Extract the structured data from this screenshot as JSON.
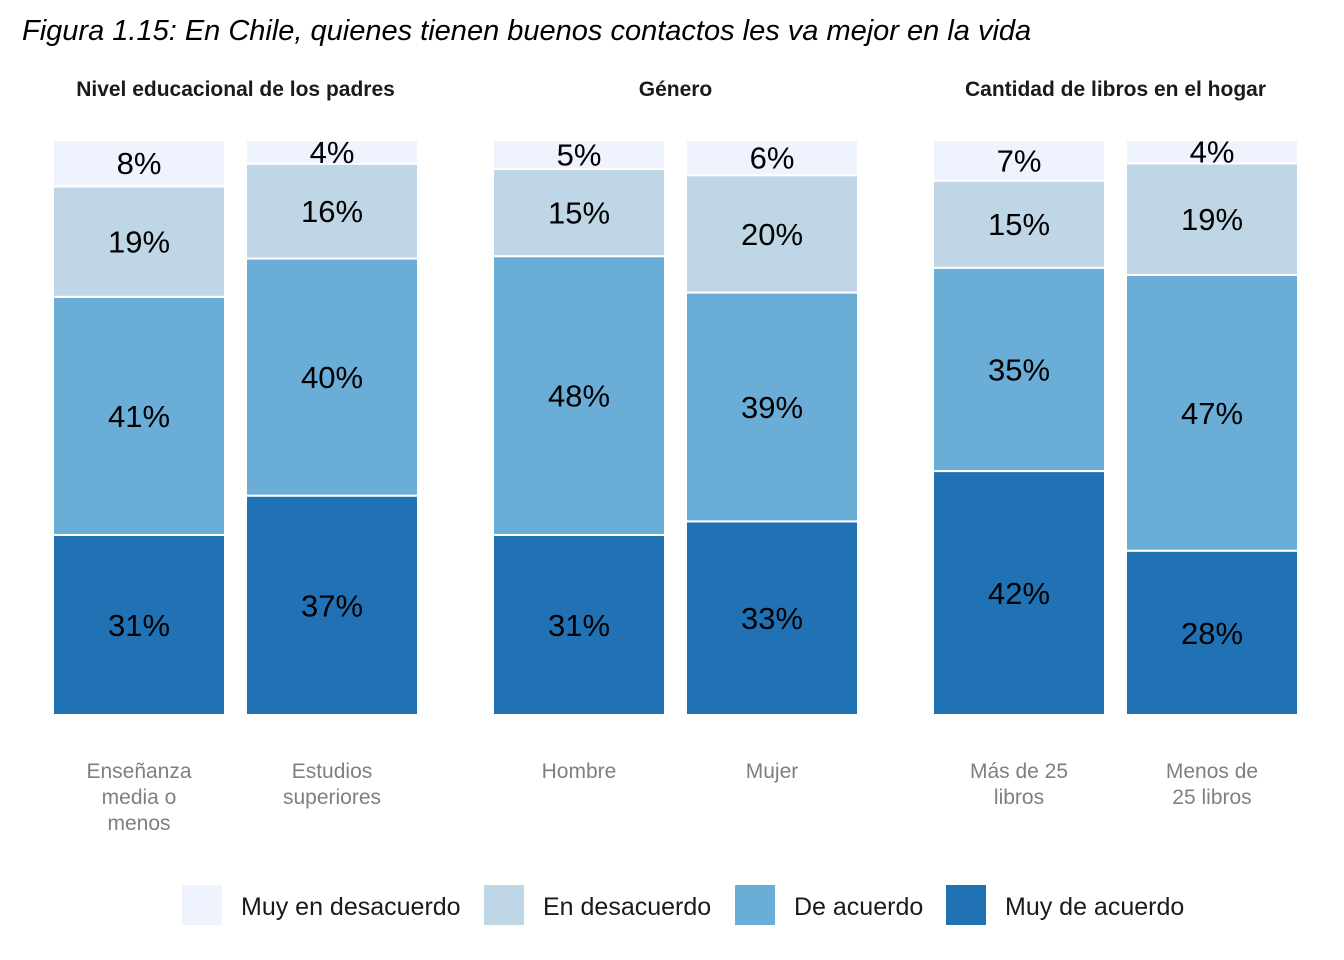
{
  "title": "Figura 1.15: En Chile, quienes tienen buenos contactos les va mejor en la vida",
  "legend": [
    {
      "label": "Muy en desacuerdo",
      "color": "#eef3fd"
    },
    {
      "label": "En desacuerdo",
      "color": "#bfd6e6"
    },
    {
      "label": "De acuerdo",
      "color": "#6aadd6"
    },
    {
      "label": "Muy de acuerdo",
      "color": "#2171b5"
    }
  ],
  "chart_data": {
    "type": "bar",
    "stacked": true,
    "legend_position": "bottom",
    "ylim": [
      0,
      100
    ],
    "segment_order_bottom_to_top": [
      "Muy de acuerdo",
      "De acuerdo",
      "En desacuerdo",
      "Muy en desacuerdo"
    ],
    "panels": [
      {
        "title": "Nivel educacional de los padres",
        "bars": [
          {
            "label_lines": [
              "Enseñanza",
              "media o",
              "menos"
            ],
            "values": [
              31,
              41,
              19,
              8
            ],
            "labels": [
              "31%",
              "41%",
              "19%",
              "8%"
            ]
          },
          {
            "label_lines": [
              "Estudios",
              "superiores"
            ],
            "values": [
              37,
              40,
              16,
              4
            ],
            "labels": [
              "37%",
              "40%",
              "16%",
              "4%"
            ]
          }
        ]
      },
      {
        "title": "Género",
        "bars": [
          {
            "label_lines": [
              "Hombre"
            ],
            "values": [
              31,
              48,
              15,
              5
            ],
            "labels": [
              "31%",
              "48%",
              "15%",
              "5%"
            ]
          },
          {
            "label_lines": [
              "Mujer"
            ],
            "values": [
              33,
              39,
              20,
              6
            ],
            "labels": [
              "33%",
              "39%",
              "20%",
              "6%"
            ]
          }
        ]
      },
      {
        "title": "Cantidad de libros en el hogar",
        "bars": [
          {
            "label_lines": [
              "Más de 25",
              "libros"
            ],
            "values": [
              42,
              35,
              15,
              7
            ],
            "labels": [
              "42%",
              "35%",
              "15%",
              "7%"
            ]
          },
          {
            "label_lines": [
              "Menos de",
              "25 libros"
            ],
            "values": [
              28,
              47,
              19,
              4
            ],
            "labels": [
              "28%",
              "47%",
              "19%",
              "4%"
            ]
          }
        ]
      }
    ]
  }
}
